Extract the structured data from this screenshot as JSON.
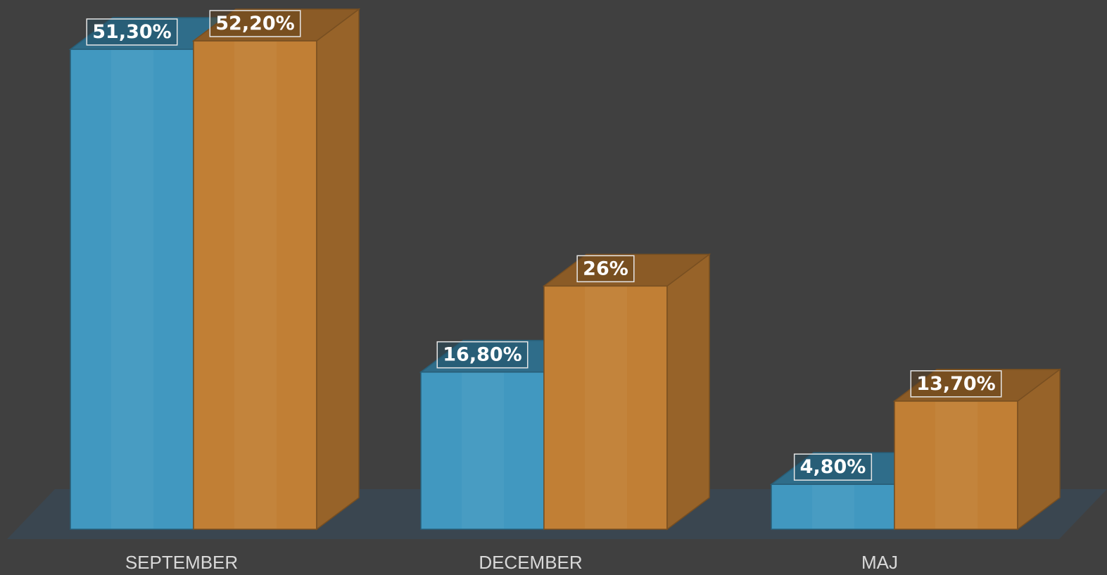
{
  "chart_data": {
    "type": "bar",
    "categories": [
      "SEPTEMBER",
      "DECEMBER",
      "MAJ"
    ],
    "series": [
      {
        "values": [
          51.3,
          16.8,
          4.8
        ],
        "labels": [
          "51,30%",
          "16,80%",
          "4,80%"
        ],
        "color": "#4198c0"
      },
      {
        "values": [
          52.2,
          26,
          13.7
        ],
        "labels": [
          "52,20%",
          "26%",
          "13,70%"
        ],
        "color": "#c17f35"
      }
    ],
    "ylim": [
      0,
      52.2
    ],
    "grid": false,
    "legend": "none",
    "style": "3d-clustered-column"
  }
}
